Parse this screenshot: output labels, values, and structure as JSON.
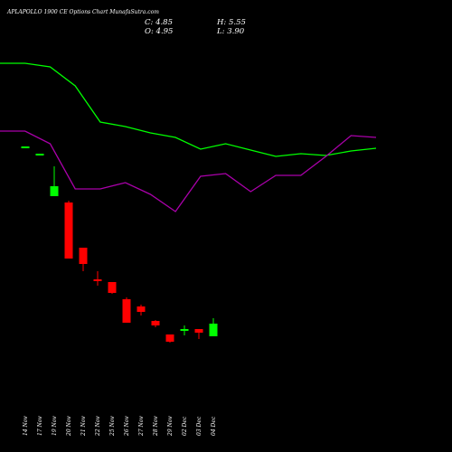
{
  "chart_data": {
    "type": "candlestick",
    "title": "APLAPOLLO 1900  CE Options  Chart MunafaSutra.com",
    "ohlc_summary": {
      "c_label": "C: 4.85",
      "h_label": "H: 5.55",
      "o_label": "O: 4.95",
      "l_label": "L: 3.90"
    },
    "xlabel": "",
    "ylabel": "",
    "grid": false,
    "colors": {
      "background": "#000000",
      "up": "#00ff00",
      "down": "#ff0000",
      "line_green": "#00ff00",
      "line_magenta": "#aa00aa",
      "text": "#ffffff"
    },
    "categories": [
      "14 Nov",
      "17 Nov",
      "19 Nov",
      "20 Nov",
      "21 Nov",
      "22 Nov",
      "25 Nov",
      "26 Nov",
      "27 Nov",
      "28 Nov",
      "29 Nov",
      "02 Dec",
      "03 Dec",
      "04 Dec"
    ],
    "candles": [
      {
        "date": "14 Nov",
        "open": 98.0,
        "high": 98.0,
        "low": 98.0,
        "close": 98.0
      },
      {
        "date": "17 Nov",
        "open": 93.0,
        "high": 93.0,
        "low": 93.0,
        "close": 94.0
      },
      {
        "date": "19 Nov",
        "open": 70.5,
        "high": 87.0,
        "low": 70.5,
        "close": 76.0
      },
      {
        "date": "20 Nov",
        "open": 67.0,
        "high": 68.0,
        "low": 36.0,
        "close": 36.0
      },
      {
        "date": "21 Nov",
        "open": 42.0,
        "high": 42.0,
        "low": 29.0,
        "close": 33.0
      },
      {
        "date": "22 Nov",
        "open": 24.5,
        "high": 29.0,
        "low": 21.0,
        "close": 23.5
      },
      {
        "date": "25 Nov",
        "open": 23.0,
        "high": 23.0,
        "low": 16.5,
        "close": 17.0
      },
      {
        "date": "26 Nov",
        "open": 13.5,
        "high": 14.5,
        "low": 0.5,
        "close": 0.5
      },
      {
        "date": "27 Nov",
        "open": 9.5,
        "high": 10.5,
        "low": 4.5,
        "close": 6.5
      },
      {
        "date": "28 Nov",
        "open": 1.5,
        "high": 2.0,
        "low": -2.0,
        "close": -1.0
      },
      {
        "date": "29 Nov",
        "open": -6.0,
        "high": -6.0,
        "low": -10.5,
        "close": -10.0
      },
      {
        "date": "02 Dec",
        "open": -4.0,
        "high": -1.0,
        "low": -6.5,
        "close": -3.0
      },
      {
        "date": "03 Dec",
        "open": -3.0,
        "high": -3.0,
        "low": -8.5,
        "close": -5.0
      },
      {
        "date": "04 Dec",
        "open": -7.0,
        "high": 3.0,
        "low": -7.0,
        "close": 0.0
      }
    ],
    "overlay_lines": [
      {
        "color": "#00ff00",
        "values": [
          70,
          70,
          74,
          95,
          135,
          140,
          147,
          152,
          165,
          159,
          166,
          173,
          170,
          172,
          167,
          164
        ]
      },
      {
        "color": "#aa00aa",
        "values": [
          145,
          145,
          159,
          209,
          209,
          202,
          215,
          234,
          195,
          192,
          212,
          194,
          194,
          173,
          150,
          152
        ]
      }
    ]
  }
}
